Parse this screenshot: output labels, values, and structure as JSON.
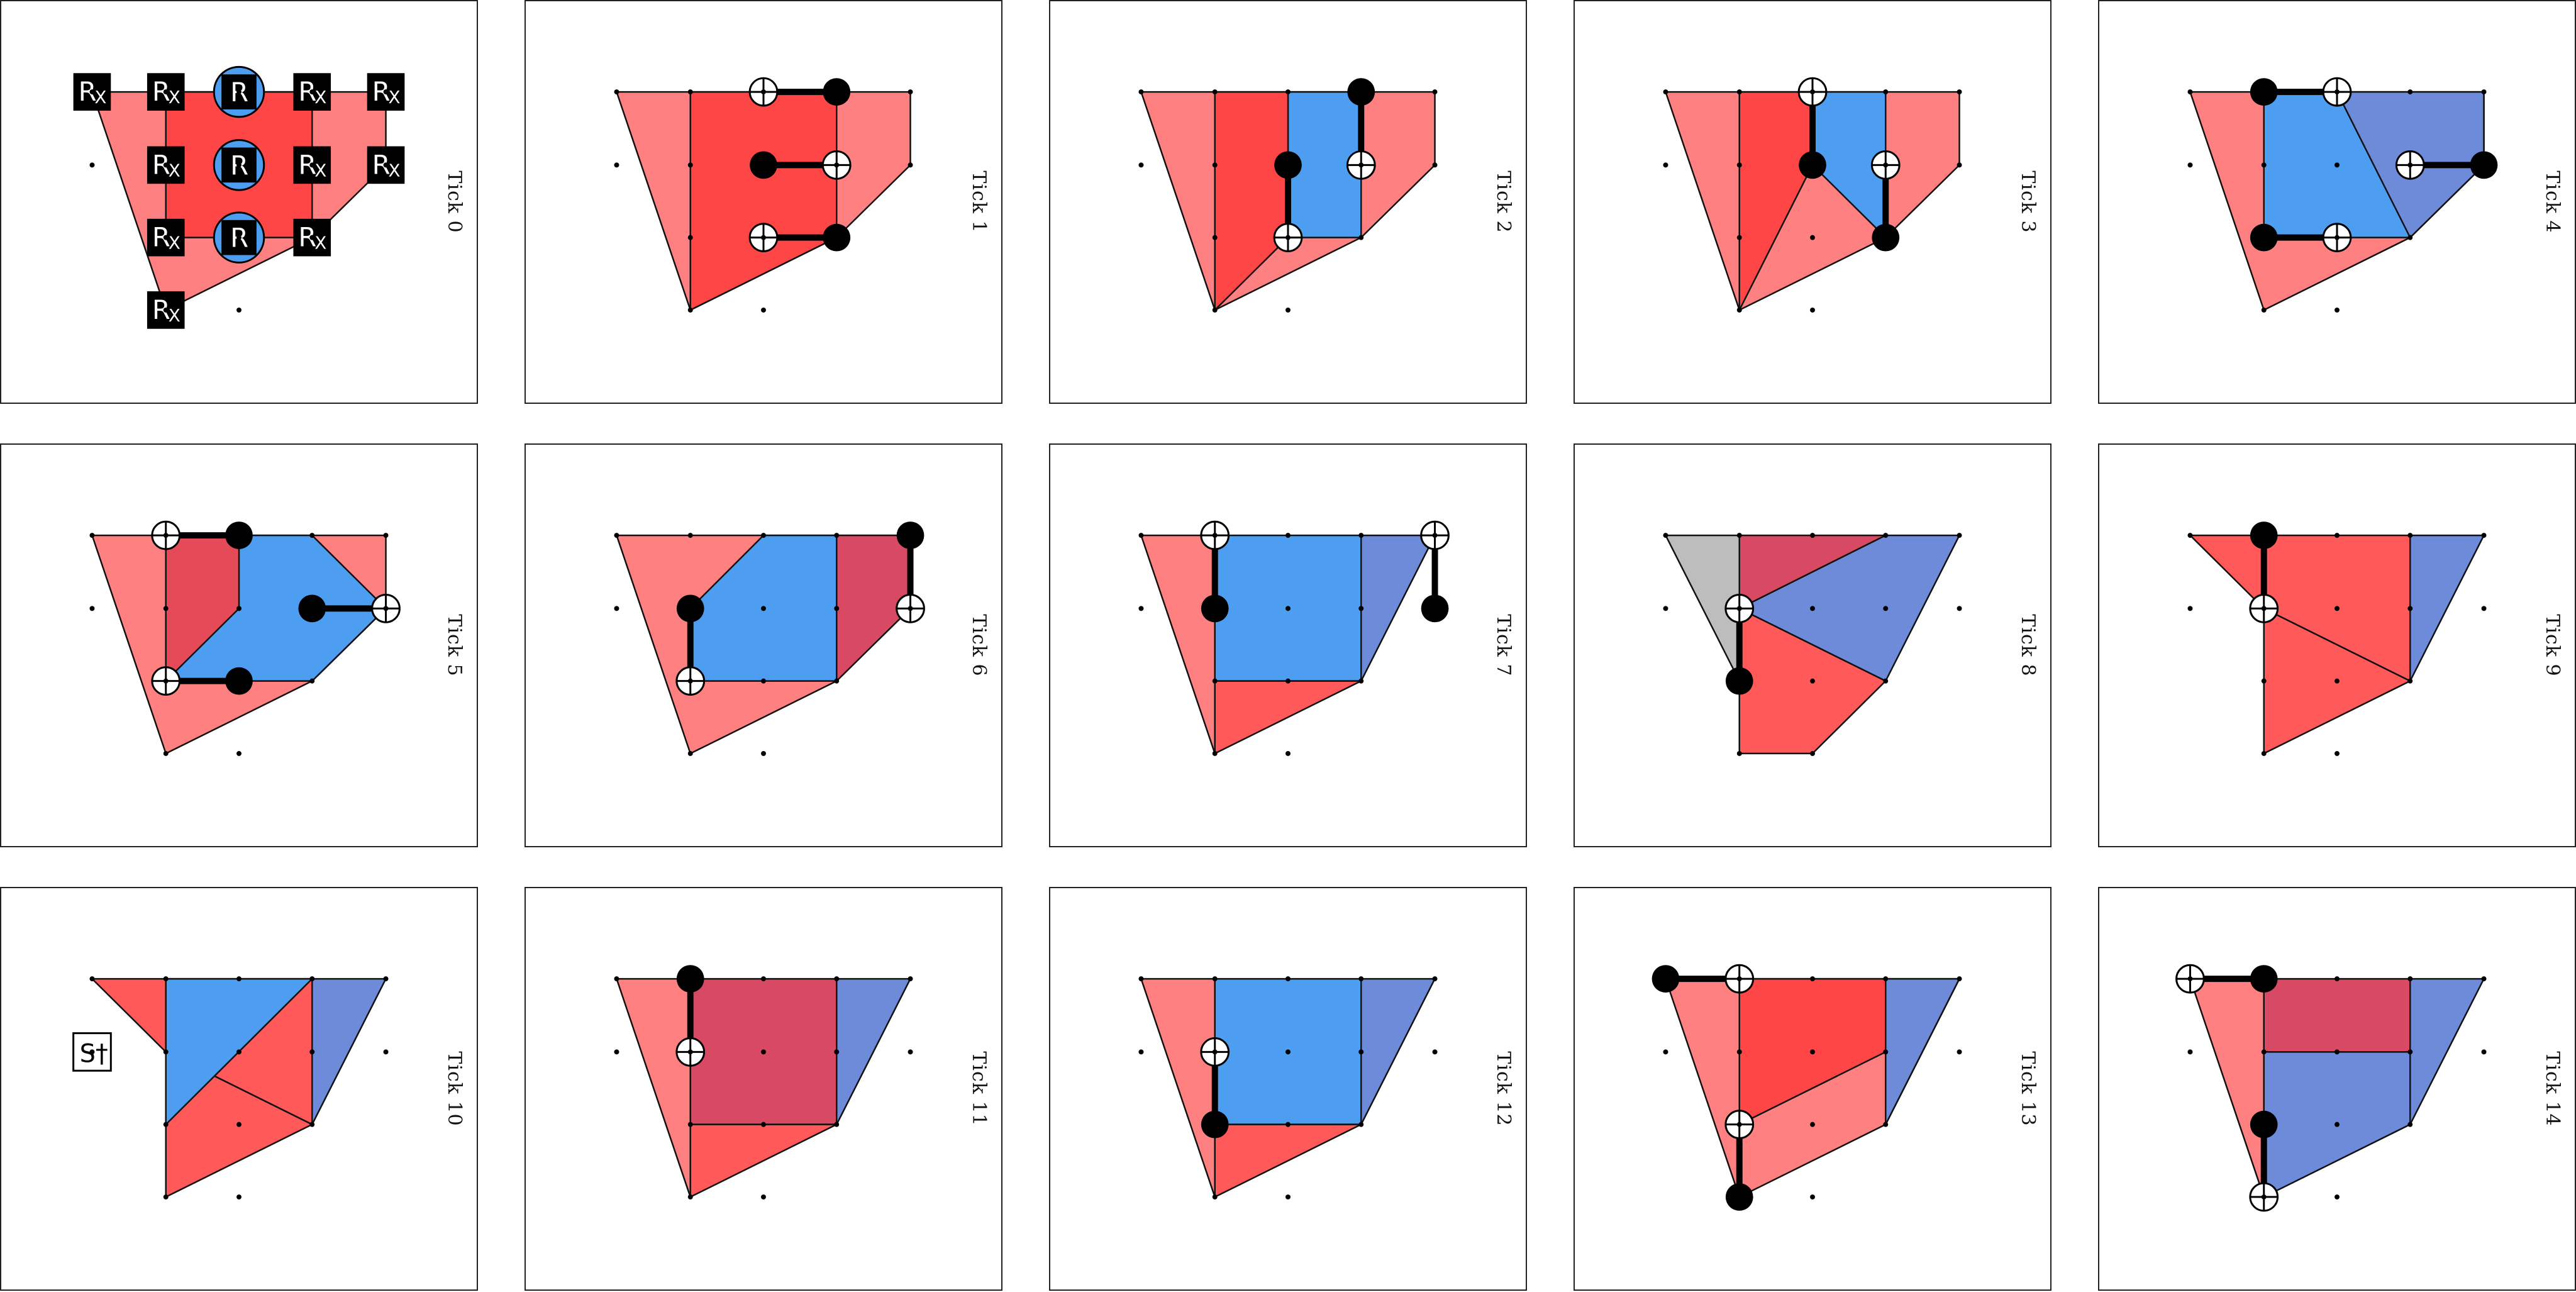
{
  "panels": [
    {
      "label": "Tick 0"
    },
    {
      "label": "Tick 1"
    },
    {
      "label": "Tick 2"
    },
    {
      "label": "Tick 3"
    },
    {
      "label": "Tick 4"
    },
    {
      "label": "Tick 5"
    },
    {
      "label": "Tick 6"
    },
    {
      "label": "Tick 7"
    },
    {
      "label": "Tick 8"
    },
    {
      "label": "Tick 9"
    },
    {
      "label": "Tick 10"
    },
    {
      "label": "Tick 11"
    },
    {
      "label": "Tick 12"
    },
    {
      "label": "Tick 13"
    },
    {
      "label": "Tick 14"
    }
  ],
  "gates": {
    "rx_main": "R",
    "rx_sub": "X",
    "r": "R",
    "sdag": "S†"
  },
  "colors": {
    "x_stabilizer": "#ff3c3c",
    "z_stabilizer": "#4d9df0",
    "mixed": "#d84a64"
  }
}
